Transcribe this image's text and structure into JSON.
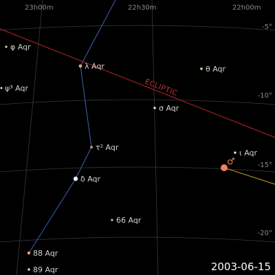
{
  "chart": {
    "ra_labels": [
      "23h00m",
      "22h30m",
      "22h00m"
    ],
    "dec_labels": [
      "-5°",
      "-10°",
      "-15°",
      "-20°"
    ],
    "ecliptic_label": "ECLIPTIC",
    "date": "2003-06-15"
  },
  "stars": [
    {
      "name": "φ Aqr"
    },
    {
      "name": "λ Aqr"
    },
    {
      "name": "θ Aqr"
    },
    {
      "name": "ψ³ Aqr"
    },
    {
      "name": "σ Aqr"
    },
    {
      "name": "τ² Aqr"
    },
    {
      "name": "δ Aqr"
    },
    {
      "name": "ι Aqr"
    },
    {
      "name": "66 Aqr"
    },
    {
      "name": "88 Aqr"
    },
    {
      "name": "89 Aqr"
    }
  ],
  "planet": {
    "symbol": "♂",
    "name": "Mars",
    "color": "#f08060"
  },
  "colors": {
    "background": "#000000",
    "grid": "#3a3a3a",
    "ecliptic": "#b0202a",
    "constellation": "#3a5aa8",
    "planet_track": "#c8a020"
  }
}
